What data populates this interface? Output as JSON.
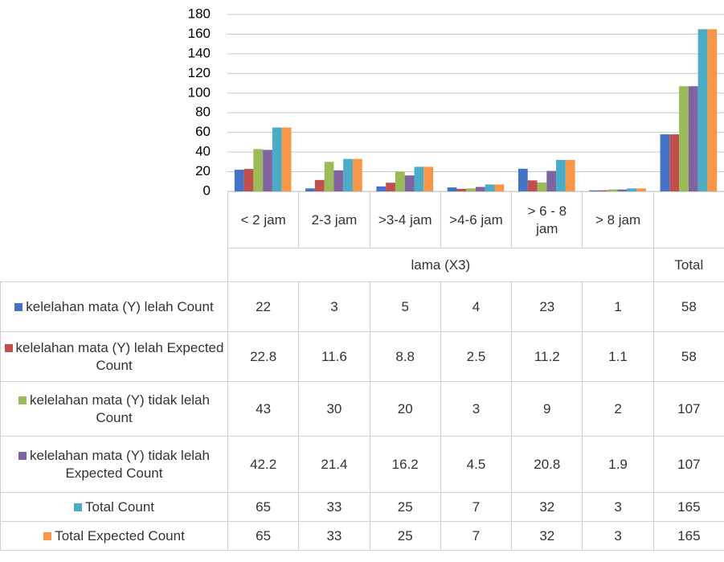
{
  "chart_data": {
    "type": "bar",
    "categories": [
      "< 2 jam",
      "2-3 jam",
      ">3-4 jam",
      ">4-6 jam",
      "> 6 - 8 jam",
      "> 8 jam",
      "Total"
    ],
    "group_label": "lama (X3)",
    "series": [
      {
        "name": "kelelahan mata (Y) lelah Count",
        "color": "#4472c4",
        "values": [
          22,
          3,
          5,
          4,
          23,
          1,
          58
        ]
      },
      {
        "name": "kelelahan mata (Y) lelah Expected Count",
        "color": "#c0504d",
        "values": [
          22.8,
          11.6,
          8.8,
          2.5,
          11.2,
          1.1,
          58
        ]
      },
      {
        "name": "kelelahan mata (Y) tidak lelah Count",
        "color": "#9bbb59",
        "values": [
          43,
          30,
          20,
          3,
          9,
          2,
          107
        ]
      },
      {
        "name": "kelelahan mata (Y) tidak lelah Expected Count",
        "color": "#8064a2",
        "values": [
          42.2,
          21.4,
          16.2,
          4.5,
          20.8,
          1.9,
          107
        ]
      },
      {
        "name": "Total Count",
        "color": "#4bacc6",
        "values": [
          65,
          33,
          25,
          7,
          32,
          3,
          165
        ]
      },
      {
        "name": "Total Expected Count",
        "color": "#f79646",
        "values": [
          65,
          33,
          25,
          7,
          32,
          3,
          165
        ]
      }
    ],
    "ylim": [
      0,
      180
    ],
    "yticks": [
      0,
      20,
      40,
      60,
      80,
      100,
      120,
      140,
      160,
      180
    ],
    "grid": true
  }
}
